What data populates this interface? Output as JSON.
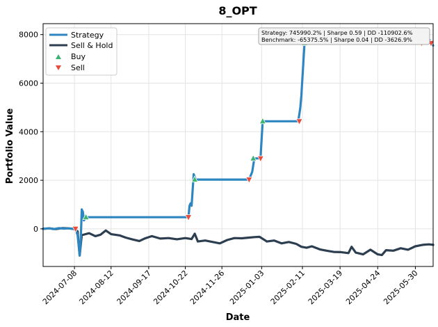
{
  "chart_data": {
    "type": "line",
    "title": "8_OPT",
    "xlabel": "Date",
    "ylabel": "Portfolio Value",
    "x_range": [
      "2024-06-08",
      "2025-06-16"
    ],
    "ylim": [
      -1550,
      8450
    ],
    "y_ticks": [
      0,
      2000,
      4000,
      6000,
      8000
    ],
    "x_ticks": [
      "2024-07-08",
      "2024-08-12",
      "2024-09-17",
      "2024-10-22",
      "2024-11-26",
      "2025-01-03",
      "2025-02-11",
      "2025-03-19",
      "2025-04-24",
      "2025-05-30"
    ],
    "grid": true,
    "legend": {
      "position": "top-left",
      "entries": [
        {
          "label": "Strategy",
          "kind": "line",
          "color": "#2e86c1"
        },
        {
          "label": "Sell & Hold",
          "kind": "line",
          "color": "#2c3e50"
        },
        {
          "label": "Buy",
          "kind": "marker-up",
          "color": "#3cb371"
        },
        {
          "label": "Sell",
          "kind": "marker-down",
          "color": "#e74c3c"
        }
      ]
    },
    "annotation": {
      "position": "top-right",
      "lines": [
        "Strategy: 745990.2% | Sharpe 0.59 | DD -110902.6%",
        "Benchmark: -65375.5% | Sharpe 0.04 | DD -3626.9%"
      ]
    },
    "series": [
      {
        "name": "Strategy",
        "color": "#2e86c1",
        "points": [
          [
            "2024-06-08",
            0
          ],
          [
            "2024-06-14",
            20
          ],
          [
            "2024-06-18",
            -10
          ],
          [
            "2024-06-23",
            30
          ],
          [
            "2024-06-28",
            10
          ],
          [
            "2024-07-02",
            20
          ],
          [
            "2024-07-06",
            0
          ],
          [
            "2024-07-09",
            -20
          ],
          [
            "2024-07-11",
            -250
          ],
          [
            "2024-07-13",
            -1100
          ],
          [
            "2024-07-14",
            -500
          ],
          [
            "2024-07-15",
            800
          ],
          [
            "2024-07-16",
            700
          ],
          [
            "2024-07-17",
            350
          ],
          [
            "2024-07-19",
            480
          ],
          [
            "2024-10-25",
            480
          ],
          [
            "2024-10-26",
            950
          ],
          [
            "2024-10-27",
            1050
          ],
          [
            "2024-10-28",
            950
          ],
          [
            "2024-10-30",
            2250
          ],
          [
            "2024-11-01",
            2030
          ],
          [
            "2024-12-22",
            2030
          ],
          [
            "2024-12-25",
            2350
          ],
          [
            "2024-12-27",
            2900
          ],
          [
            "2025-01-01",
            2900
          ],
          [
            "2025-01-02",
            2950
          ],
          [
            "2025-01-04",
            4430
          ],
          [
            "2025-02-07",
            4430
          ],
          [
            "2025-02-09",
            5000
          ],
          [
            "2025-02-10",
            5500
          ],
          [
            "2025-02-13",
            7650
          ],
          [
            "2025-06-01",
            7650
          ],
          [
            "2025-06-04",
            7800
          ],
          [
            "2025-06-09",
            7700
          ],
          [
            "2025-06-12",
            7800
          ],
          [
            "2025-06-16",
            7550
          ]
        ]
      },
      {
        "name": "Sell & Hold",
        "color": "#2c3e50",
        "points": [
          [
            "2024-06-08",
            0
          ],
          [
            "2024-06-14",
            20
          ],
          [
            "2024-06-20",
            -10
          ],
          [
            "2024-06-26",
            30
          ],
          [
            "2024-07-02",
            20
          ],
          [
            "2024-07-07",
            0
          ],
          [
            "2024-07-11",
            -100
          ],
          [
            "2024-07-13",
            -1100
          ],
          [
            "2024-07-15",
            -260
          ],
          [
            "2024-07-22",
            -180
          ],
          [
            "2024-07-28",
            -300
          ],
          [
            "2024-08-02",
            -240
          ],
          [
            "2024-08-07",
            -70
          ],
          [
            "2024-08-12",
            -220
          ],
          [
            "2024-08-20",
            -270
          ],
          [
            "2024-08-26",
            -360
          ],
          [
            "2024-09-01",
            -430
          ],
          [
            "2024-09-08",
            -500
          ],
          [
            "2024-09-13",
            -400
          ],
          [
            "2024-09-20",
            -300
          ],
          [
            "2024-09-28",
            -400
          ],
          [
            "2024-10-06",
            -380
          ],
          [
            "2024-10-14",
            -430
          ],
          [
            "2024-10-22",
            -380
          ],
          [
            "2024-10-28",
            -420
          ],
          [
            "2024-10-31",
            -200
          ],
          [
            "2024-11-03",
            -520
          ],
          [
            "2024-11-10",
            -480
          ],
          [
            "2024-11-16",
            -530
          ],
          [
            "2024-11-24",
            -600
          ],
          [
            "2024-12-01",
            -460
          ],
          [
            "2024-12-08",
            -380
          ],
          [
            "2024-12-15",
            -390
          ],
          [
            "2024-12-22",
            -360
          ],
          [
            "2024-12-27",
            -340
          ],
          [
            "2025-01-01",
            -330
          ],
          [
            "2025-01-08",
            -520
          ],
          [
            "2025-01-15",
            -480
          ],
          [
            "2025-01-22",
            -600
          ],
          [
            "2025-01-29",
            -540
          ],
          [
            "2025-02-05",
            -620
          ],
          [
            "2025-02-10",
            -740
          ],
          [
            "2025-02-15",
            -780
          ],
          [
            "2025-02-20",
            -720
          ],
          [
            "2025-02-28",
            -850
          ],
          [
            "2025-03-06",
            -900
          ],
          [
            "2025-03-13",
            -950
          ],
          [
            "2025-03-20",
            -960
          ],
          [
            "2025-03-27",
            -1000
          ],
          [
            "2025-03-30",
            -740
          ],
          [
            "2025-04-03",
            -980
          ],
          [
            "2025-04-10",
            -1050
          ],
          [
            "2025-04-17",
            -860
          ],
          [
            "2025-04-24",
            -1050
          ],
          [
            "2025-04-28",
            -1080
          ],
          [
            "2025-05-02",
            -880
          ],
          [
            "2025-05-09",
            -900
          ],
          [
            "2025-05-16",
            -800
          ],
          [
            "2025-05-23",
            -860
          ],
          [
            "2025-05-30",
            -720
          ],
          [
            "2025-06-06",
            -660
          ],
          [
            "2025-06-12",
            -640
          ],
          [
            "2025-06-16",
            -660
          ]
        ]
      }
    ],
    "buy_markers": [
      [
        "2024-07-19",
        480
      ],
      [
        "2024-10-31",
        2030
      ],
      [
        "2024-12-26",
        2900
      ],
      [
        "2025-01-04",
        4430
      ],
      [
        "2025-02-13",
        7650
      ],
      [
        "2025-06-09",
        7700
      ]
    ],
    "sell_markers": [
      [
        "2024-07-09",
        0
      ],
      [
        "2024-10-25",
        480
      ],
      [
        "2024-12-22",
        2030
      ],
      [
        "2025-01-02",
        2900
      ],
      [
        "2025-02-08",
        4430
      ],
      [
        "2025-06-05",
        7650
      ],
      [
        "2025-06-14",
        7650
      ]
    ]
  }
}
